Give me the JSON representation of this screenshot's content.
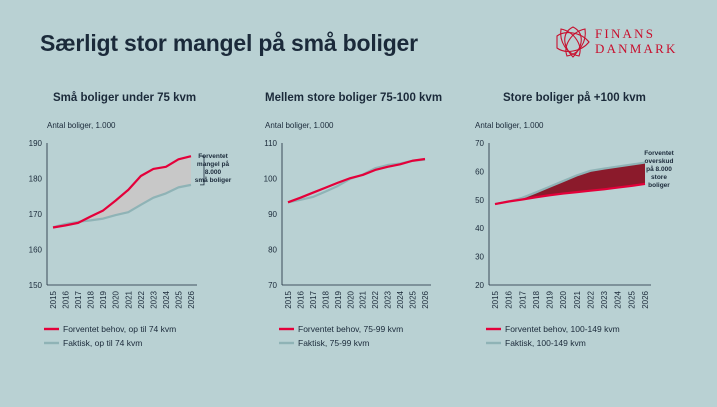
{
  "title": "Særligt stor mangel på små boliger",
  "logo": {
    "line1": "FINANS",
    "line2": "DANMARK"
  },
  "colors": {
    "background": "#b9d1d3",
    "expected": "#e4003a",
    "actual": "#8fb3b6",
    "shortage_fill": "#c8c8c8",
    "surplus_fill": "#8b1a2b",
    "title": "#1b2a3a"
  },
  "chart_data": [
    {
      "type": "line",
      "title": "Små boliger under 75 kvm",
      "ylabel": "Antal boliger, 1.000",
      "ylim": [
        150,
        190
      ],
      "yticks": [
        150,
        160,
        170,
        180,
        190
      ],
      "x": [
        "2015",
        "2016",
        "2017",
        "2018",
        "2019",
        "2020",
        "2021",
        "2022",
        "2023",
        "2024",
        "2025",
        "2026"
      ],
      "series": [
        {
          "name": "Forventet behov, op til 74 kvm",
          "values": [
            166.2,
            166.8,
            167.5,
            169.3,
            171.0,
            173.8,
            176.8,
            180.7,
            182.7,
            183.3,
            185.4,
            186.3
          ]
        },
        {
          "name": "Faktisk, op til 74 kvm",
          "values": [
            166.3,
            167.2,
            167.8,
            168.2,
            168.7,
            169.7,
            170.5,
            172.6,
            174.6,
            175.8,
            177.5,
            178.2
          ]
        }
      ],
      "fill": "shortage",
      "annotation": [
        "Forventet",
        "mangel på",
        "8.000",
        "små boliger"
      ]
    },
    {
      "type": "line",
      "title": "Mellem store boliger 75-100 kvm",
      "ylabel": "Antal boliger, 1.000",
      "ylim": [
        70,
        110
      ],
      "yticks": [
        70,
        80,
        90,
        100,
        110
      ],
      "x": [
        "2015",
        "2016",
        "2017",
        "2018",
        "2019",
        "2020",
        "2021",
        "2022",
        "2023",
        "2024",
        "2025",
        "2026"
      ],
      "series": [
        {
          "name": "Forventet behov, 75-99 kvm",
          "values": [
            93.3,
            94.6,
            96.0,
            97.4,
            98.8,
            100.1,
            101.0,
            102.4,
            103.3,
            104.0,
            105.0,
            105.5
          ]
        },
        {
          "name": "Faktisk, 75-99 kvm",
          "values": [
            93.3,
            94.0,
            94.8,
            96.3,
            97.9,
            99.9,
            101.1,
            102.9,
            103.8,
            104.2,
            105.0,
            105.3
          ]
        }
      ]
    },
    {
      "type": "line",
      "title": "Store boliger på +100 kvm",
      "ylabel": "Antal boliger, 1.000",
      "ylim": [
        20,
        70
      ],
      "yticks": [
        20,
        30,
        40,
        50,
        60,
        70
      ],
      "x": [
        "2015",
        "2016",
        "2017",
        "2018",
        "2019",
        "2020",
        "2021",
        "2022",
        "2023",
        "2024",
        "2025",
        "2026"
      ],
      "series": [
        {
          "name": "Forventet behov, 100-149 kvm",
          "values": [
            48.5,
            49.4,
            50.1,
            50.9,
            51.6,
            52.2,
            52.7,
            53.2,
            53.7,
            54.3,
            54.9,
            55.6
          ]
        },
        {
          "name": "Faktisk, 100-149 kvm",
          "values": [
            48.5,
            49.4,
            50.7,
            52.6,
            54.6,
            56.6,
            58.6,
            60.2,
            61.0,
            61.7,
            62.4,
            63.1
          ]
        }
      ],
      "fill": "surplus",
      "annotation": [
        "Forventet",
        "overskud",
        "på 8.000",
        "store",
        "boliger"
      ]
    }
  ]
}
